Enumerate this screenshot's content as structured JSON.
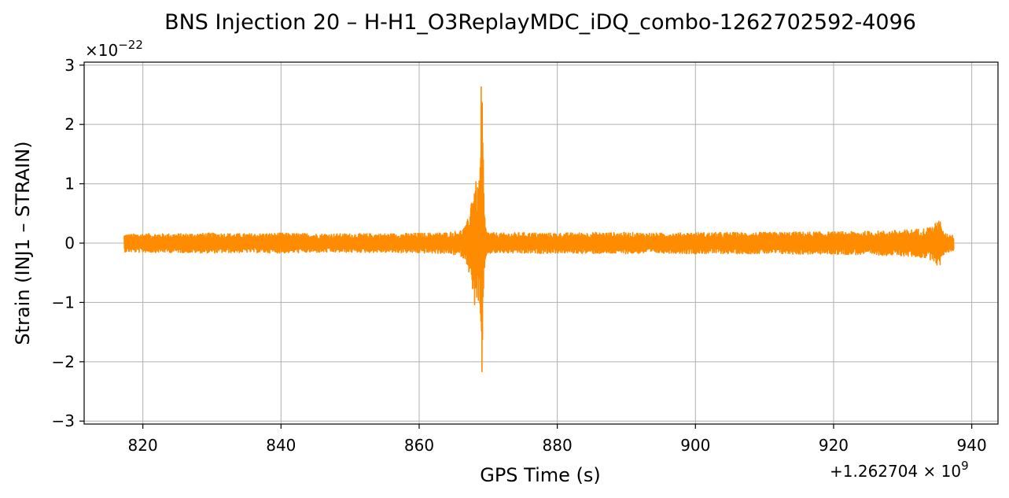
{
  "chart_data": {
    "type": "line",
    "title": "BNS Injection 20 – H-H1_O3ReplayMDC_iDQ_combo-1262702592-4096",
    "xlabel": "GPS Time (s)",
    "ylabel": "Strain (INJ1 – STRAIN)",
    "x_offset_label": "+1.262704 × 10",
    "x_offset_exp": "9",
    "y_scale_label": "×10",
    "y_scale_exp": "−22",
    "xlim": [
      811.5,
      943.8
    ],
    "ylim": [
      -3.05,
      3.05
    ],
    "grid": true,
    "x_ticks": [
      820,
      840,
      860,
      880,
      900,
      920,
      940
    ],
    "x_tick_labels": [
      "820",
      "840",
      "860",
      "880",
      "900",
      "920",
      "940"
    ],
    "y_ticks": [
      -3,
      -2,
      -1,
      0,
      1,
      2,
      3
    ],
    "y_tick_labels": [
      "−3",
      "−2",
      "−1",
      "0",
      "1",
      "2",
      "3"
    ],
    "series": [
      {
        "color": "#ff8c00",
        "x": [
          817.3,
          820,
          825,
          830,
          835,
          840,
          845,
          850,
          855,
          860,
          864,
          866,
          866.8,
          867.3,
          867.7,
          868.1,
          868.5,
          868.8,
          869.0,
          869.2,
          869.4,
          869.7,
          870.2,
          872,
          875,
          880,
          885,
          890,
          895,
          900,
          905,
          910,
          915,
          920,
          925,
          930,
          933,
          934.5,
          935.1,
          935.3,
          935.6,
          936.2,
          937.4
        ],
        "envelope": [
          0.15,
          0.16,
          0.16,
          0.17,
          0.16,
          0.17,
          0.16,
          0.16,
          0.16,
          0.17,
          0.18,
          0.22,
          0.3,
          0.55,
          0.95,
          1.08,
          0.95,
          1.3,
          2.76,
          2.45,
          0.6,
          0.22,
          0.18,
          0.17,
          0.18,
          0.17,
          0.18,
          0.18,
          0.17,
          0.18,
          0.18,
          0.18,
          0.19,
          0.19,
          0.2,
          0.22,
          0.25,
          0.3,
          0.4,
          0.52,
          0.25,
          0.16,
          0.14
        ]
      }
    ]
  }
}
